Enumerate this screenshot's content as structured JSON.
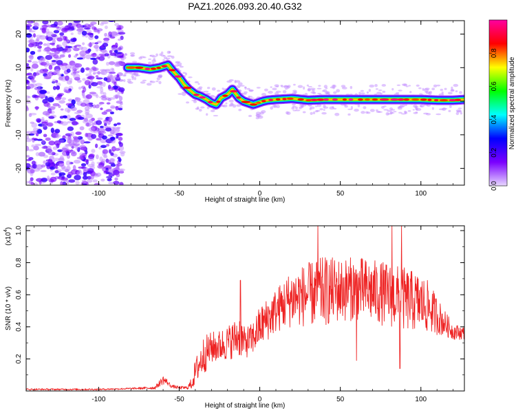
{
  "title": "PAZ1.2026.093.20.40.G32",
  "chart_data": [
    {
      "type": "heatmap",
      "xlabel": "Height of straight line (km)",
      "ylabel": "Frequency (Hz)",
      "xlim": [
        -145,
        127
      ],
      "ylim": [
        -25,
        24
      ],
      "xticks": [
        "-100",
        "-50",
        "0",
        "50",
        "100"
      ],
      "xtick_values": [
        -100,
        -50,
        0,
        50,
        100
      ],
      "yticks": [
        "20",
        "10",
        "0",
        "-10",
        "-20"
      ],
      "ytick_values": [
        20,
        10,
        0,
        -10,
        -20
      ],
      "colorbar": {
        "label": "Normalized spectral amplitude",
        "range": [
          0,
          1
        ],
        "ticks": [
          "0.0",
          "0.2",
          "0.4",
          "0.6",
          "0.8"
        ],
        "tick_values": [
          0,
          0.2,
          0.4,
          0.6,
          0.8
        ],
        "colormap": [
          "#e8d8ff",
          "#7a00ff",
          "#0000ff",
          "#00ffff",
          "#00ff00",
          "#ffff00",
          "#ff0000",
          "#ff00a0"
        ]
      },
      "ridge": {
        "x": [
          -82,
          -75,
          -68,
          -62,
          -57,
          -54,
          -50,
          -47,
          -44,
          -40,
          -37,
          -33,
          -30,
          -27,
          -24,
          -20,
          -17,
          -13,
          -10,
          -7,
          -4,
          -1,
          2,
          5,
          10,
          20,
          30,
          40,
          50,
          60,
          70,
          80,
          90,
          100,
          110,
          120,
          127
        ],
        "frequency": [
          10,
          10,
          9.5,
          10,
          10.8,
          9,
          7,
          5,
          3.5,
          2,
          1.5,
          0.5,
          -0.5,
          -1,
          1,
          2,
          3.5,
          1,
          0,
          -0.5,
          -1,
          -0.5,
          0,
          0.3,
          0.5,
          0.8,
          0.3,
          0.5,
          0.5,
          0.5,
          0.5,
          0.5,
          0.5,
          0.5,
          0.3,
          0.3,
          0.5
        ],
        "amplitude_range": [
          0.8,
          1.0
        ]
      },
      "noise_region": {
        "x_range": [
          -145,
          -85
        ],
        "frequency_range": [
          -25,
          24
        ],
        "amplitude_range": [
          0.05,
          0.25
        ]
      }
    },
    {
      "type": "line",
      "xlabel": "Height of straight line (km)",
      "ylabel": "SNR (10 * v/v)",
      "y_multiplier_label": "(x10",
      "y_multiplier_exp": "4",
      "xlim": [
        -145,
        127
      ],
      "ylim": [
        0,
        1.03
      ],
      "xticks": [
        "-100",
        "-50",
        "0",
        "50",
        "100"
      ],
      "xtick_values": [
        -100,
        -50,
        0,
        50,
        100
      ],
      "yticks": [
        "0.2",
        "0.4",
        "0.6",
        "0.8",
        "1.0"
      ],
      "ytick_values": [
        0.2,
        0.4,
        0.6,
        0.8,
        1.0
      ],
      "line_color": "#ee2222",
      "envelope": {
        "x": [
          -145,
          -100,
          -80,
          -65,
          -62,
          -60,
          -58,
          -55,
          -50,
          -45,
          -42,
          -40,
          -35,
          -30,
          -25,
          -20,
          -15,
          -12,
          -10,
          -5,
          0,
          10,
          20,
          30,
          40,
          50,
          60,
          70,
          80,
          90,
          100,
          105,
          110,
          115,
          120,
          127
        ],
        "mean": [
          0.01,
          0.01,
          0.015,
          0.02,
          0.05,
          0.07,
          0.06,
          0.03,
          0.02,
          0.02,
          0.05,
          0.12,
          0.22,
          0.27,
          0.28,
          0.3,
          0.33,
          0.35,
          0.3,
          0.32,
          0.4,
          0.5,
          0.58,
          0.6,
          0.62,
          0.63,
          0.64,
          0.62,
          0.6,
          0.57,
          0.55,
          0.52,
          0.47,
          0.42,
          0.37,
          0.36
        ],
        "fluctuation": [
          0.005,
          0.005,
          0.005,
          0.01,
          0.02,
          0.03,
          0.02,
          0.01,
          0.01,
          0.01,
          0.04,
          0.08,
          0.12,
          0.1,
          0.1,
          0.11,
          0.12,
          0.14,
          0.1,
          0.1,
          0.13,
          0.14,
          0.18,
          0.2,
          0.22,
          0.2,
          0.2,
          0.2,
          0.2,
          0.2,
          0.18,
          0.16,
          0.12,
          0.08,
          0.05,
          0.04
        ]
      },
      "peaks": [
        {
          "x": -12,
          "y": 0.69
        },
        {
          "x": 36,
          "y": 1.03
        },
        {
          "x": 82,
          "y": 1.03
        },
        {
          "x": 88,
          "y": 1.03
        }
      ],
      "troughs": [
        {
          "x": 60,
          "y": 0.19
        },
        {
          "x": 87,
          "y": 0.14
        }
      ]
    }
  ]
}
